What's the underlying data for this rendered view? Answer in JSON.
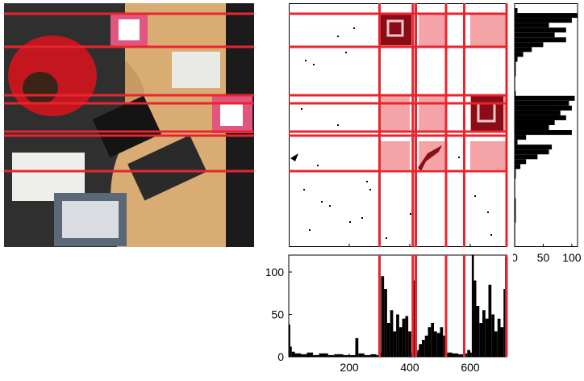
{
  "colors": {
    "guide_line": "#e8252f",
    "band_fill": "#f4a3a6",
    "marker_pink": "#e1567e",
    "marker_dark": "#8a0c16",
    "bars": "#000000"
  },
  "photo": {
    "description_icons": [
      "person-icon",
      "keyboard-icon",
      "marker-icon",
      "monitor-icon"
    ]
  },
  "segmentation": {
    "shaded_columns": [
      [
        300,
        400
      ],
      [
        430,
        520
      ],
      [
        600,
        720
      ]
    ]
  },
  "chart_data": [
    {
      "type": "bar",
      "orientation": "vertical",
      "title": "",
      "xlabel": "",
      "ylabel": "",
      "xlim": [
        0,
        720
      ],
      "ylim": [
        0,
        120
      ],
      "x_ticks": [
        200,
        400,
        600
      ],
      "y_ticks": [
        0,
        50,
        100
      ],
      "x_tick_labels": [
        "200",
        "400",
        "600"
      ],
      "y_tick_labels": [
        "0",
        "50",
        "100"
      ],
      "profile": [
        [
          0,
          38
        ],
        [
          5,
          12
        ],
        [
          10,
          6
        ],
        [
          20,
          4
        ],
        [
          40,
          3
        ],
        [
          60,
          5
        ],
        [
          80,
          2
        ],
        [
          100,
          4
        ],
        [
          130,
          2
        ],
        [
          150,
          3
        ],
        [
          180,
          2
        ],
        [
          200,
          2
        ],
        [
          220,
          22
        ],
        [
          230,
          4
        ],
        [
          250,
          2
        ],
        [
          270,
          3
        ],
        [
          290,
          2
        ],
        [
          300,
          5
        ],
        [
          305,
          95
        ],
        [
          315,
          80
        ],
        [
          325,
          40
        ],
        [
          335,
          55
        ],
        [
          345,
          30
        ],
        [
          355,
          50
        ],
        [
          365,
          35
        ],
        [
          375,
          45
        ],
        [
          385,
          48
        ],
        [
          395,
          30
        ],
        [
          405,
          5
        ],
        [
          410,
          90
        ],
        [
          420,
          5
        ],
        [
          425,
          8
        ],
        [
          430,
          15
        ],
        [
          440,
          20
        ],
        [
          450,
          25
        ],
        [
          460,
          35
        ],
        [
          470,
          40
        ],
        [
          480,
          30
        ],
        [
          490,
          28
        ],
        [
          500,
          35
        ],
        [
          510,
          25
        ],
        [
          520,
          5
        ],
        [
          540,
          4
        ],
        [
          560,
          3
        ],
        [
          580,
          4
        ],
        [
          590,
          8
        ],
        [
          600,
          5
        ],
        [
          605,
          120
        ],
        [
          612,
          90
        ],
        [
          620,
          60
        ],
        [
          630,
          40
        ],
        [
          640,
          55
        ],
        [
          650,
          45
        ],
        [
          660,
          85
        ],
        [
          670,
          50
        ],
        [
          680,
          30
        ],
        [
          690,
          45
        ],
        [
          700,
          35
        ],
        [
          710,
          80
        ],
        [
          715,
          118
        ],
        [
          720,
          60
        ]
      ]
    },
    {
      "type": "bar",
      "orientation": "horizontal",
      "title": "",
      "xlabel": "",
      "ylabel": "",
      "xlim": [
        0,
        110
      ],
      "x_ticks": [
        0,
        50,
        100
      ],
      "x_tick_labels": [
        "0",
        "50",
        "100"
      ],
      "profile": [
        [
          0,
          0
        ],
        [
          2,
          5
        ],
        [
          4,
          110
        ],
        [
          6,
          100
        ],
        [
          8,
          60
        ],
        [
          10,
          90
        ],
        [
          12,
          70
        ],
        [
          14,
          90
        ],
        [
          16,
          50
        ],
        [
          18,
          30
        ],
        [
          20,
          15
        ],
        [
          22,
          5
        ],
        [
          24,
          2
        ],
        [
          30,
          1
        ],
        [
          36,
          2
        ],
        [
          38,
          105
        ],
        [
          40,
          95
        ],
        [
          42,
          100
        ],
        [
          44,
          80
        ],
        [
          46,
          90
        ],
        [
          48,
          70
        ],
        [
          50,
          60
        ],
        [
          52,
          100
        ],
        [
          54,
          20
        ],
        [
          56,
          5
        ],
        [
          58,
          65
        ],
        [
          60,
          60
        ],
        [
          62,
          40
        ],
        [
          64,
          20
        ],
        [
          66,
          10
        ],
        [
          68,
          2
        ],
        [
          72,
          1
        ],
        [
          80,
          2
        ],
        [
          90,
          1
        ],
        [
          100,
          0
        ]
      ]
    }
  ]
}
